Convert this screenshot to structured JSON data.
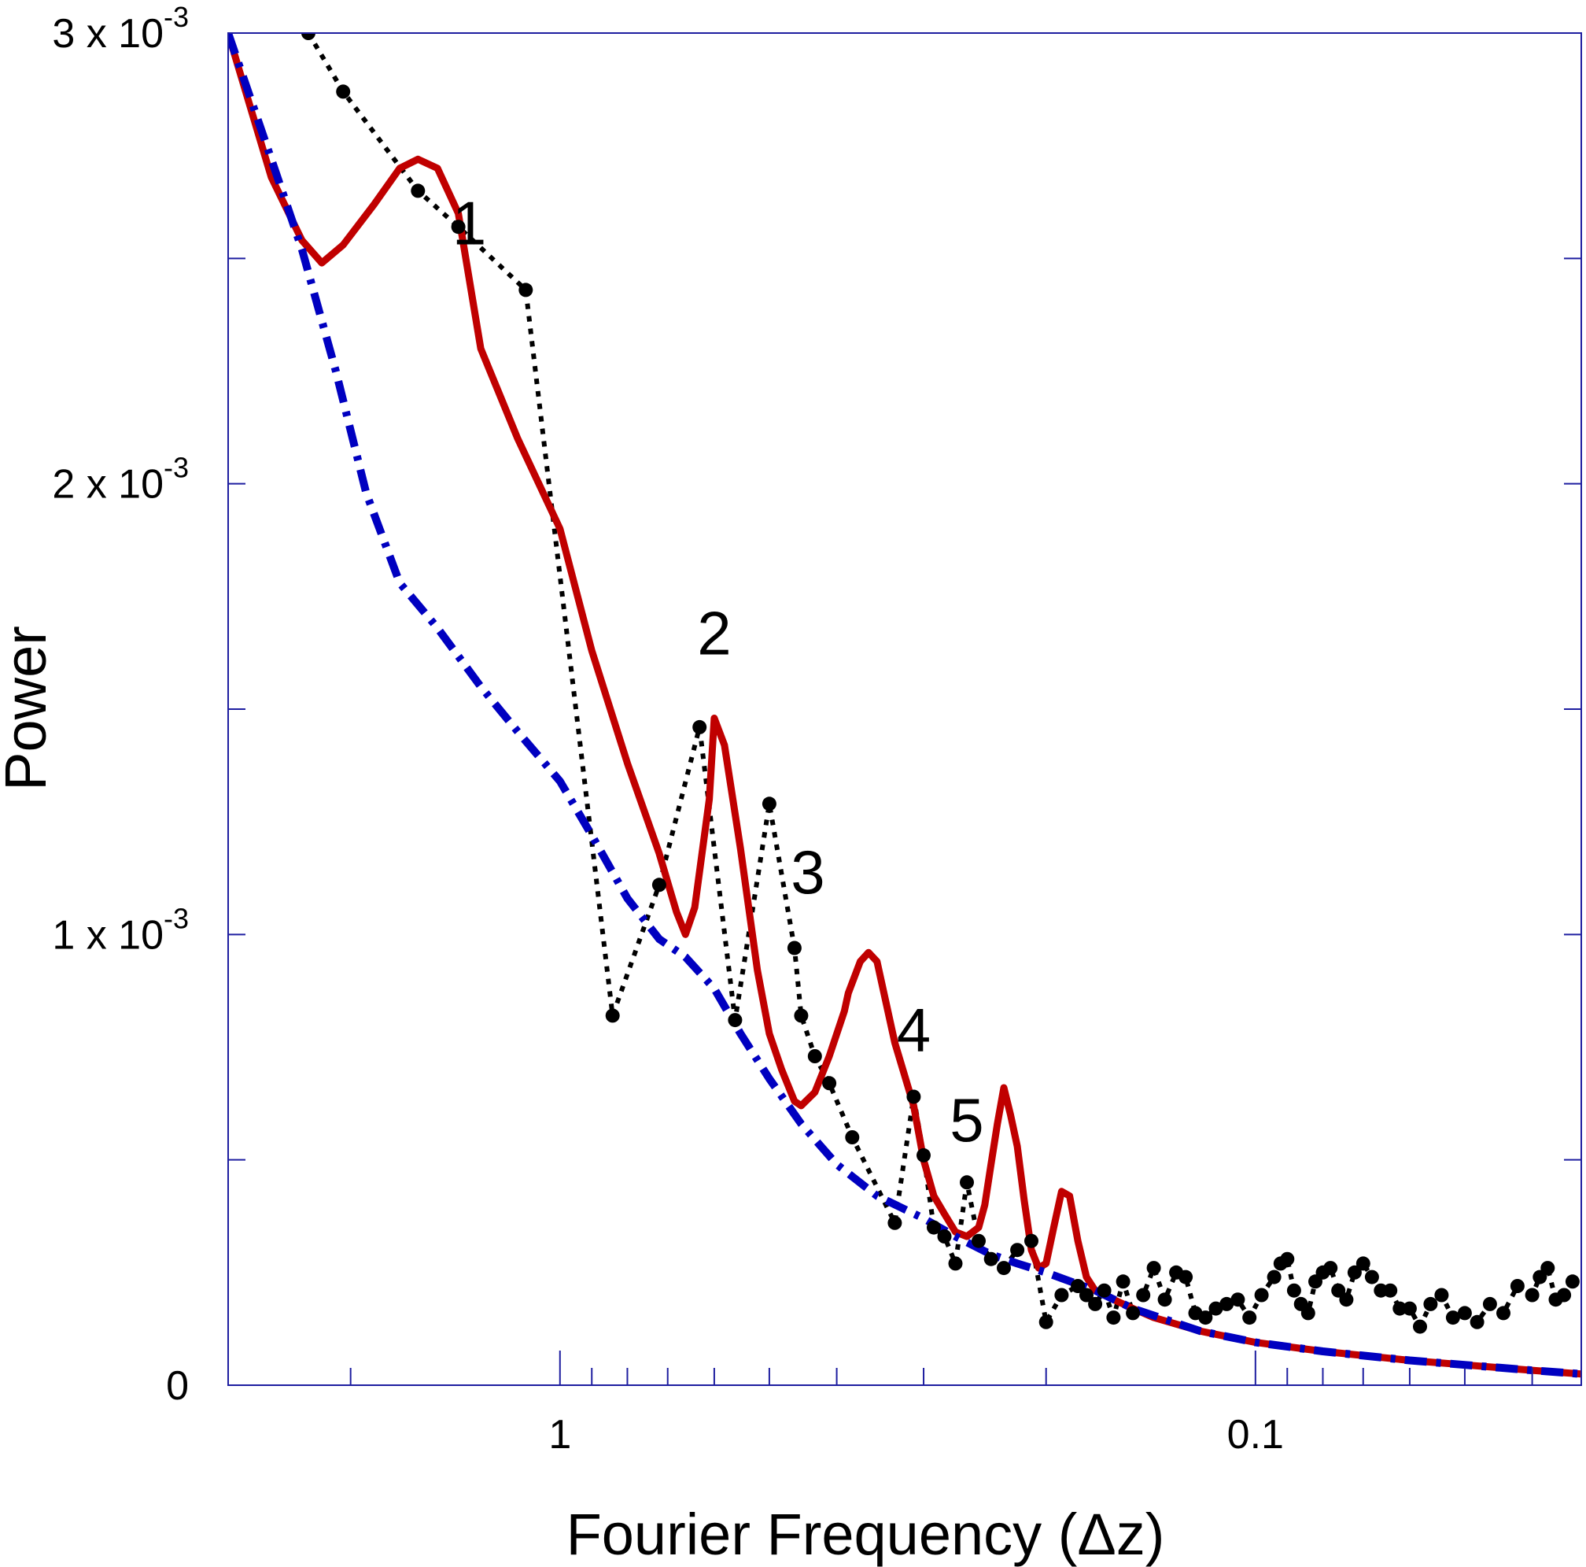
{
  "chart_data": {
    "type": "line",
    "xlabel": "Fourier Frequency (Δz)",
    "ylabel": "Power",
    "x_scale": "log",
    "x_direction": "descending",
    "xlim": [
      3.0,
      0.034
    ],
    "ylim": [
      0,
      0.003
    ],
    "x_ticks": [
      {
        "value": 1,
        "label": "1"
      },
      {
        "value": 0.1,
        "label": "0.1"
      }
    ],
    "y_ticks": [
      {
        "value": 0,
        "base": "0",
        "exp": ""
      },
      {
        "value": 0.001,
        "base": "1 x 10",
        "exp": "-3"
      },
      {
        "value": 0.002,
        "base": "2 x 10",
        "exp": "-3"
      },
      {
        "value": 0.003,
        "base": "3 x 10",
        "exp": "-3"
      }
    ],
    "y_minor_ticks": [
      0.0005,
      0.0015,
      0.0025
    ],
    "grid": false,
    "legend": "none",
    "annotations": [
      {
        "text": "1",
        "x": 1.35,
        "y": 0.00258
      },
      {
        "text": "2",
        "x": 0.6,
        "y": 0.00167
      },
      {
        "text": "3",
        "x": 0.44,
        "y": 0.00114
      },
      {
        "text": "4",
        "x": 0.31,
        "y": 0.00079
      },
      {
        "text": "5",
        "x": 0.26,
        "y": 0.00059
      }
    ],
    "series": [
      {
        "color": "#000000",
        "style": "dotted-markers",
        "points": [
          [
            2.3,
            0.003
          ],
          [
            2.05,
            0.00287
          ],
          [
            1.6,
            0.00265
          ],
          [
            1.4,
            0.00257
          ],
          [
            1.12,
            0.00243
          ],
          [
            0.84,
            0.00082
          ],
          [
            0.72,
            0.00111
          ],
          [
            0.63,
            0.00146
          ],
          [
            0.56,
            0.00081
          ],
          [
            0.5,
            0.00129
          ],
          [
            0.46,
            0.00097
          ],
          [
            0.45,
            0.00082
          ],
          [
            0.43,
            0.00073
          ],
          [
            0.41,
            0.00067
          ],
          [
            0.38,
            0.00055
          ],
          [
            0.33,
            0.00036
          ],
          [
            0.31,
            0.00064
          ],
          [
            0.3,
            0.00051
          ],
          [
            0.29,
            0.00035
          ],
          [
            0.28,
            0.00033
          ],
          [
            0.27,
            0.00027
          ],
          [
            0.26,
            0.00045
          ],
          [
            0.25,
            0.00032
          ],
          [
            0.24,
            0.00028
          ],
          [
            0.23,
            0.00026
          ],
          [
            0.22,
            0.0003
          ],
          [
            0.21,
            0.00032
          ],
          [
            0.2,
            0.00014
          ],
          [
            0.19,
            0.0002
          ],
          [
            0.18,
            0.00022
          ],
          [
            0.175,
            0.0002
          ],
          [
            0.17,
            0.00018
          ],
          [
            0.165,
            0.00021
          ],
          [
            0.16,
            0.00015
          ],
          [
            0.155,
            0.00023
          ],
          [
            0.15,
            0.00016
          ],
          [
            0.145,
            0.0002
          ],
          [
            0.14,
            0.00026
          ],
          [
            0.135,
            0.00019
          ],
          [
            0.13,
            0.00025
          ],
          [
            0.126,
            0.00024
          ],
          [
            0.122,
            0.00016
          ],
          [
            0.118,
            0.00015
          ],
          [
            0.114,
            0.00017
          ],
          [
            0.11,
            0.00018
          ],
          [
            0.106,
            0.00019
          ],
          [
            0.102,
            0.00015
          ],
          [
            0.098,
            0.0002
          ],
          [
            0.094,
            0.00024
          ],
          [
            0.092,
            0.00027
          ],
          [
            0.09,
            0.00028
          ],
          [
            0.088,
            0.00021
          ],
          [
            0.086,
            0.00018
          ],
          [
            0.084,
            0.00016
          ],
          [
            0.082,
            0.00023
          ],
          [
            0.08,
            0.00025
          ],
          [
            0.078,
            0.00026
          ],
          [
            0.076,
            0.00021
          ],
          [
            0.074,
            0.00019
          ],
          [
            0.072,
            0.00025
          ],
          [
            0.07,
            0.00027
          ],
          [
            0.068,
            0.00024
          ],
          [
            0.066,
            0.00021
          ],
          [
            0.064,
            0.00021
          ],
          [
            0.062,
            0.00017
          ],
          [
            0.06,
            0.00017
          ],
          [
            0.058,
            0.00013
          ],
          [
            0.056,
            0.00018
          ],
          [
            0.054,
            0.0002
          ],
          [
            0.052,
            0.00015
          ],
          [
            0.05,
            0.00016
          ],
          [
            0.048,
            0.00014
          ],
          [
            0.046,
            0.00018
          ],
          [
            0.044,
            0.00016
          ],
          [
            0.042,
            0.00022
          ],
          [
            0.04,
            0.0002
          ],
          [
            0.039,
            0.00024
          ],
          [
            0.038,
            0.00026
          ],
          [
            0.037,
            0.00019
          ],
          [
            0.036,
            0.0002
          ],
          [
            0.035,
            0.00023
          ]
        ]
      },
      {
        "color": "#c00000",
        "style": "solid",
        "points": [
          [
            3.0,
            0.003
          ],
          [
            2.6,
            0.00268
          ],
          [
            2.35,
            0.00254
          ],
          [
            2.2,
            0.00249
          ],
          [
            2.05,
            0.00253
          ],
          [
            1.85,
            0.00262
          ],
          [
            1.7,
            0.0027
          ],
          [
            1.6,
            0.00272
          ],
          [
            1.5,
            0.0027
          ],
          [
            1.4,
            0.0026
          ],
          [
            1.3,
            0.0023
          ],
          [
            1.15,
            0.0021
          ],
          [
            1.0,
            0.0019
          ],
          [
            0.9,
            0.00163
          ],
          [
            0.8,
            0.00138
          ],
          [
            0.72,
            0.00118
          ],
          [
            0.68,
            0.00105
          ],
          [
            0.66,
            0.001
          ],
          [
            0.64,
            0.00106
          ],
          [
            0.61,
            0.0013
          ],
          [
            0.6,
            0.00148
          ],
          [
            0.58,
            0.00142
          ],
          [
            0.55,
            0.00119
          ],
          [
            0.52,
            0.00092
          ],
          [
            0.5,
            0.00078
          ],
          [
            0.48,
            0.0007
          ],
          [
            0.46,
            0.00063
          ],
          [
            0.45,
            0.00062
          ],
          [
            0.43,
            0.00065
          ],
          [
            0.41,
            0.00073
          ],
          [
            0.39,
            0.00083
          ],
          [
            0.385,
            0.00087
          ],
          [
            0.37,
            0.00094
          ],
          [
            0.36,
            0.00096
          ],
          [
            0.35,
            0.00094
          ],
          [
            0.33,
            0.00076
          ],
          [
            0.31,
            0.00062
          ],
          [
            0.3,
            0.0005
          ],
          [
            0.29,
            0.00042
          ],
          [
            0.28,
            0.00038
          ],
          [
            0.27,
            0.00034
          ],
          [
            0.26,
            0.00033
          ],
          [
            0.25,
            0.00035
          ],
          [
            0.245,
            0.0004
          ],
          [
            0.24,
            0.00049
          ],
          [
            0.235,
            0.00058
          ],
          [
            0.23,
            0.00066
          ],
          [
            0.225,
            0.0006
          ],
          [
            0.22,
            0.00053
          ],
          [
            0.215,
            0.00041
          ],
          [
            0.21,
            0.0003
          ],
          [
            0.205,
            0.00026
          ],
          [
            0.2,
            0.00027
          ],
          [
            0.195,
            0.00035
          ],
          [
            0.19,
            0.00043
          ],
          [
            0.185,
            0.00042
          ],
          [
            0.18,
            0.00032
          ],
          [
            0.175,
            0.00024
          ],
          [
            0.17,
            0.00021
          ],
          [
            0.16,
            0.00019
          ],
          [
            0.15,
            0.00017
          ],
          [
            0.14,
            0.00015
          ],
          [
            0.12,
            0.00012
          ],
          [
            0.1,
            9.5e-05
          ],
          [
            0.08,
            7.5e-05
          ],
          [
            0.06,
            5.5e-05
          ],
          [
            0.05,
            4.5e-05
          ],
          [
            0.04,
            3.3e-05
          ],
          [
            0.034,
            2.5e-05
          ]
        ]
      },
      {
        "color": "#0000c0",
        "style": "dash-dot",
        "points": [
          [
            3.0,
            0.003
          ],
          [
            2.6,
            0.00272
          ],
          [
            2.35,
            0.00252
          ],
          [
            2.1,
            0.00225
          ],
          [
            1.9,
            0.00198
          ],
          [
            1.7,
            0.00178
          ],
          [
            1.5,
            0.00168
          ],
          [
            1.3,
            0.00155
          ],
          [
            1.15,
            0.00145
          ],
          [
            1.0,
            0.00134
          ],
          [
            0.9,
            0.00122
          ],
          [
            0.8,
            0.00108
          ],
          [
            0.72,
            0.00099
          ],
          [
            0.66,
            0.00095
          ],
          [
            0.6,
            0.00088
          ],
          [
            0.55,
            0.00078
          ],
          [
            0.5,
            0.00068
          ],
          [
            0.45,
            0.00058
          ],
          [
            0.4,
            0.00049
          ],
          [
            0.35,
            0.00042
          ],
          [
            0.3,
            0.00037
          ],
          [
            0.27,
            0.00033
          ],
          [
            0.24,
            0.00029
          ],
          [
            0.22,
            0.00027
          ],
          [
            0.2,
            0.00025
          ],
          [
            0.17,
            0.00021
          ],
          [
            0.15,
            0.00017
          ],
          [
            0.12,
            0.00012
          ],
          [
            0.1,
            9.5e-05
          ],
          [
            0.08,
            7.5e-05
          ],
          [
            0.06,
            5.5e-05
          ],
          [
            0.05,
            4.5e-05
          ],
          [
            0.04,
            3.3e-05
          ],
          [
            0.034,
            2.5e-05
          ]
        ]
      }
    ]
  }
}
